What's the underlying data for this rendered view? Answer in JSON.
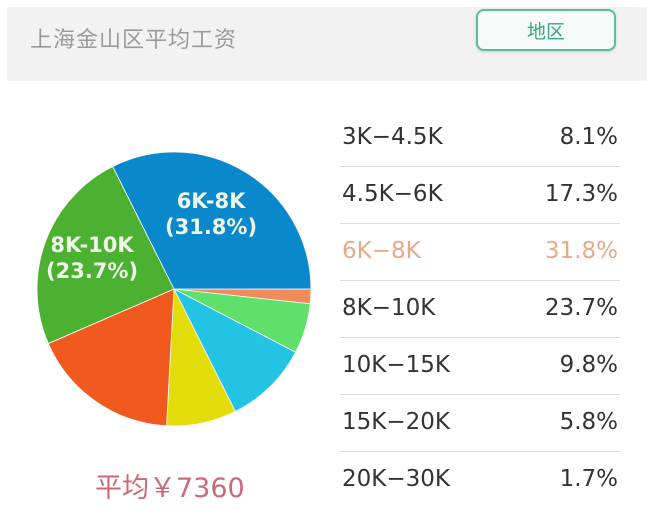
{
  "header": {
    "title": "上海金山区平均工资",
    "region_button": "地区"
  },
  "summary": {
    "average_label": "平均￥7360"
  },
  "colors": {
    "accent": "#5bbd9e",
    "highlight": "#e7a98a",
    "average_text": "#c86a78"
  },
  "table": {
    "rows": [
      {
        "range": "3K−4.5K",
        "pct": "8.1%",
        "highlight": false
      },
      {
        "range": "4.5K−6K",
        "pct": "17.3%",
        "highlight": false
      },
      {
        "range": "6K−8K",
        "pct": "31.8%",
        "highlight": true
      },
      {
        "range": "8K−10K",
        "pct": "23.7%",
        "highlight": false
      },
      {
        "range": "10K−15K",
        "pct": "9.8%",
        "highlight": false
      },
      {
        "range": "15K−20K",
        "pct": "5.8%",
        "highlight": false
      },
      {
        "range": "20K−30K",
        "pct": "1.7%",
        "highlight": false
      }
    ]
  },
  "pie_labels": [
    {
      "line1": "6K-8K",
      "line2": "(31.8%)"
    },
    {
      "line1": "8K-10K",
      "line2": "(23.7%)"
    }
  ],
  "chart_data": {
    "type": "pie",
    "title": "上海金山区平均工资",
    "categories": [
      "3K-4.5K",
      "4.5K-6K",
      "6K-8K",
      "8K-10K",
      "10K-15K",
      "15K-20K",
      "20K-30K"
    ],
    "values": [
      8.1,
      17.3,
      31.8,
      23.7,
      9.8,
      5.8,
      1.7
    ],
    "unit": "%",
    "annotations": [
      "6K-8K (31.8%)",
      "8K-10K (23.7%)",
      "平均￥7360"
    ],
    "draw_order_clockwise_from_east": [
      "20K-30K",
      "15K-20K",
      "10K-15K",
      "3K-4.5K",
      "4.5K-6K",
      "8K-10K",
      "6K-8K"
    ],
    "slice_colors": {
      "20K-30K": "#f28a5a",
      "15K-20K": "#5fe06a",
      "10K-15K": "#22c3e3",
      "3K-4.5K": "#e2dd0a",
      "4.5K-6K": "#f05a1e",
      "8K-10K": "#4cb030",
      "6K-8K": "#0a88cc"
    },
    "legend_position": "right"
  }
}
